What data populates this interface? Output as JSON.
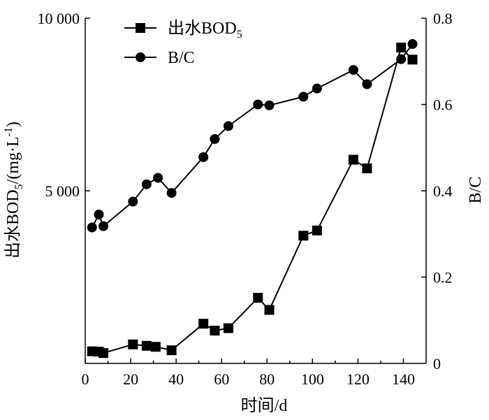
{
  "chart_data": {
    "type": "line",
    "xlabel": "时间/d",
    "ylabel_left": "出水BOD5/(mg·L-1)",
    "ylabel_left_parts": {
      "pre": "出水BOD",
      "sub": "5",
      "mid": "/(mg·L",
      "sup": "-1",
      "post": ")"
    },
    "ylabel_right": "B/C",
    "xlim": [
      0,
      150
    ],
    "ylim_left": [
      0,
      10000
    ],
    "ylim_right": [
      0,
      0.8
    ],
    "x_ticks": [
      0,
      20,
      40,
      60,
      80,
      100,
      120,
      140
    ],
    "x_tick_labels": [
      "0",
      "20",
      "40",
      "60",
      "80",
      "100",
      "120",
      "140"
    ],
    "y_left_ticks": [
      5000,
      10000
    ],
    "y_left_tick_labels": [
      "5 000",
      "10 000"
    ],
    "y_right_ticks": [
      0,
      0.2,
      0.4,
      0.6,
      0.8
    ],
    "y_right_tick_labels": [
      "0",
      "0.2",
      "0.4",
      "0.6",
      "0.8"
    ],
    "legend": {
      "placement": "top-left"
    },
    "series": [
      {
        "name": "出水BOD5",
        "name_parts": {
          "pre": "出水BOD",
          "sub": "5"
        },
        "axis": "left",
        "marker": "square",
        "x": [
          3,
          6,
          8,
          21,
          27,
          31,
          38,
          52,
          57,
          63,
          76,
          81,
          96,
          102,
          118,
          124,
          139,
          144
        ],
        "y": [
          350,
          340,
          300,
          550,
          510,
          480,
          380,
          1150,
          950,
          1020,
          1900,
          1550,
          3700,
          3850,
          5900,
          5650,
          9150,
          8800
        ]
      },
      {
        "name": "B/C",
        "axis": "right",
        "marker": "circle",
        "x": [
          3,
          6,
          8,
          21,
          27,
          32,
          38,
          52,
          57,
          63,
          76,
          81,
          96,
          102,
          118,
          124,
          139,
          144
        ],
        "y": [
          0.315,
          0.345,
          0.318,
          0.375,
          0.415,
          0.43,
          0.395,
          0.478,
          0.52,
          0.55,
          0.6,
          0.598,
          0.618,
          0.637,
          0.68,
          0.647,
          0.705,
          0.74
        ]
      }
    ]
  }
}
